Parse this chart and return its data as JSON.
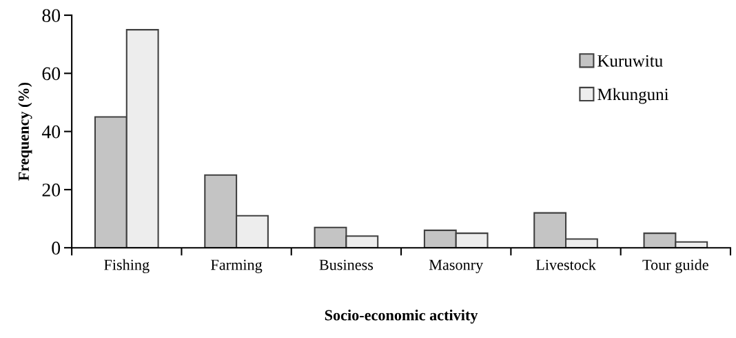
{
  "chart_data": {
    "type": "bar",
    "xlabel": "Socio-economic activity",
    "ylabel": "Frequency (%)",
    "categories": [
      "Fishing",
      "Farming",
      "Business",
      "Masonry",
      "Livestock",
      "Tour guide"
    ],
    "series": [
      {
        "name": "Kuruwitu",
        "color": "#c4c4c4",
        "values": [
          45,
          25,
          7,
          6,
          12,
          5
        ]
      },
      {
        "name": "Mkunguni",
        "color": "#ededed",
        "values": [
          75,
          11,
          4,
          5,
          3,
          2
        ]
      }
    ],
    "ylim": [
      0,
      80
    ],
    "yticks": [
      0,
      20,
      40,
      60,
      80
    ],
    "grid": false,
    "legend": "top right"
  }
}
